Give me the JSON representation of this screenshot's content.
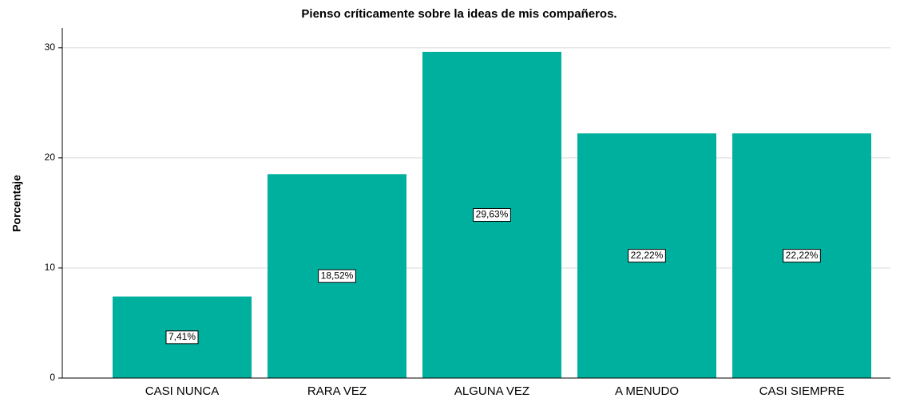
{
  "chart_data": {
    "type": "bar",
    "title": "Pienso críticamente sobre la ideas de mis compañeros.",
    "y_label": "Porcentaje",
    "categories": [
      "CASI NUNCA",
      "RARA VEZ",
      "ALGUNA VEZ",
      "A MENUDO",
      "CASI SIEMPRE"
    ],
    "values": [
      7.41,
      18.52,
      29.63,
      22.22,
      22.22
    ],
    "value_labels": [
      "7,41%",
      "18,52%",
      "29,63%",
      "22,22%",
      "22,22%"
    ],
    "color": "#00b09e",
    "ylim": [
      0,
      31.8
    ],
    "yticks": [
      0,
      10,
      20,
      30
    ],
    "grid": true
  }
}
